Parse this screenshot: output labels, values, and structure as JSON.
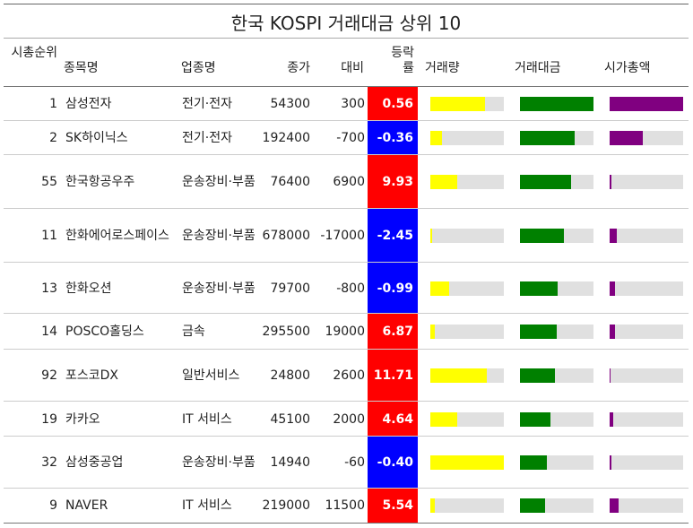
{
  "chart_data": {
    "type": "table",
    "title": "한국 KOSPI 거래대금 상위 10",
    "columns": {
      "rank": "시총순위",
      "name": "종목명",
      "sector": "업종명",
      "close": "종가",
      "diff": "대비",
      "change": "등락률",
      "volume": "거래량",
      "value": "거래대금",
      "mcap": "시가총액"
    },
    "colors": {
      "up": "#ff0000",
      "down": "#0000ff",
      "volume": "#ffff00",
      "value": "#008000",
      "mcap": "#800080",
      "track": "#e0e0e0"
    },
    "rows": [
      {
        "rank": "1",
        "name": "삼성전자",
        "sector": "전기·전자",
        "close": "54300",
        "diff": "300",
        "change": "0.56",
        "volume": 0.74,
        "value": 1.0,
        "mcap": 1.0
      },
      {
        "rank": "2",
        "name": "SK하이닉스",
        "sector": "전기·전자",
        "close": "192400",
        "diff": "-700",
        "change": "-0.36",
        "volume": 0.16,
        "value": 0.74,
        "mcap": 0.45
      },
      {
        "rank": "55",
        "name": "한국항공우주",
        "sector": "운송장비·부품",
        "close": "76400",
        "diff": "6900",
        "change": "9.93",
        "volume": 0.36,
        "value": 0.69,
        "mcap": 0.02
      },
      {
        "rank": "11",
        "name": "한화에어로스페이스",
        "sector": "운송장비·부품",
        "close": "678000",
        "diff": "-17000",
        "change": "-2.45",
        "volume": 0.03,
        "value": 0.6,
        "mcap": 0.1
      },
      {
        "rank": "13",
        "name": "한화오션",
        "sector": "운송장비·부품",
        "close": "79700",
        "diff": "-800",
        "change": "-0.99",
        "volume": 0.26,
        "value": 0.51,
        "mcap": 0.07
      },
      {
        "rank": "14",
        "name": "POSCO홀딩스",
        "sector": "금속",
        "close": "295500",
        "diff": "19000",
        "change": "6.87",
        "volume": 0.06,
        "value": 0.5,
        "mcap": 0.07
      },
      {
        "rank": "92",
        "name": "포스코DX",
        "sector": "일반서비스",
        "close": "24800",
        "diff": "2600",
        "change": "11.71",
        "volume": 0.77,
        "value": 0.48,
        "mcap": 0.01
      },
      {
        "rank": "19",
        "name": "카카오",
        "sector": "IT 서비스",
        "close": "45100",
        "diff": "2000",
        "change": "4.64",
        "volume": 0.37,
        "value": 0.42,
        "mcap": 0.05
      },
      {
        "rank": "32",
        "name": "삼성중공업",
        "sector": "운송장비·부품",
        "close": "14940",
        "diff": "-60",
        "change": "-0.40",
        "volume": 1.0,
        "value": 0.37,
        "mcap": 0.03
      },
      {
        "rank": "9",
        "name": "NAVER",
        "sector": "IT 서비스",
        "close": "219000",
        "diff": "11500",
        "change": "5.54",
        "volume": 0.06,
        "value": 0.34,
        "mcap": 0.12
      }
    ]
  }
}
